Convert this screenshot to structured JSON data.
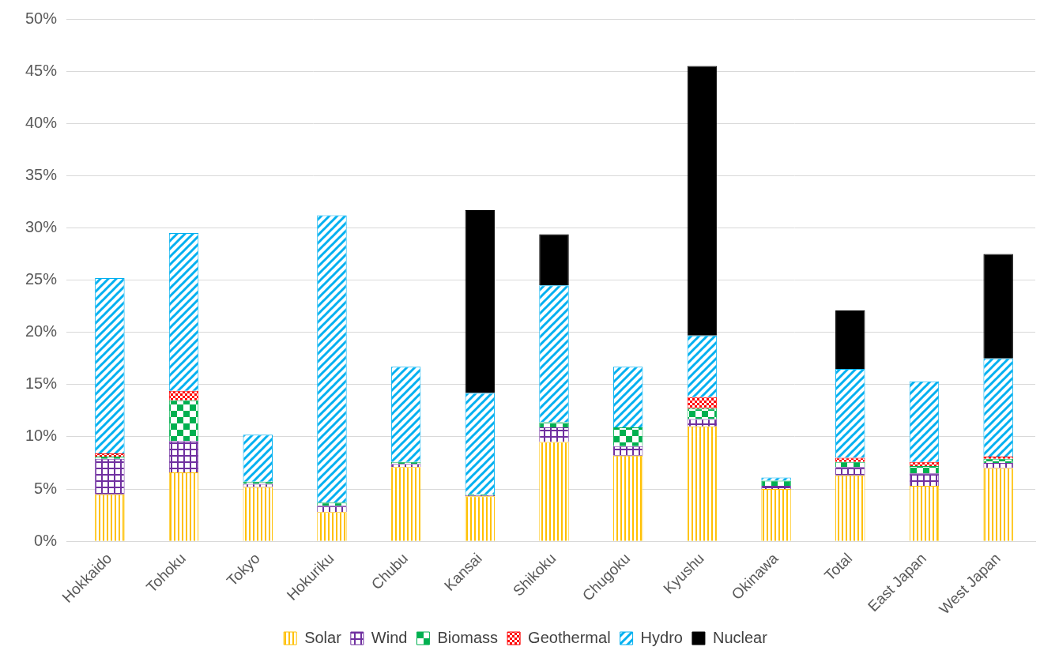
{
  "chart_data": {
    "type": "bar",
    "stacked": true,
    "grid": true,
    "legend": "bottom",
    "categories": [
      "Hokkaido",
      "Tohoku",
      "Tokyo",
      "Hokuriku",
      "Chubu",
      "Kansai",
      "Shikoku",
      "Chugoku",
      "Kyushu",
      "Okinawa",
      "Total",
      "East Japan",
      "West Japan"
    ],
    "series": [
      {
        "name": "Solar",
        "color": "#ffc000",
        "values": [
          4.5,
          6.6,
          5.2,
          2.8,
          7.1,
          4.3,
          9.5,
          8.2,
          11.0,
          5.0,
          6.3,
          5.3,
          7.0
        ]
      },
      {
        "name": "Wind",
        "color": "#7030a0",
        "values": [
          3.4,
          3.0,
          0.3,
          0.6,
          0.3,
          0.1,
          1.4,
          0.9,
          0.7,
          0.3,
          0.8,
          1.2,
          0.5
        ]
      },
      {
        "name": "Biomass",
        "color": "#00b050",
        "values": [
          0.2,
          3.9,
          0.2,
          0.3,
          0.2,
          0.1,
          0.5,
          1.8,
          1.0,
          0.5,
          0.5,
          0.7,
          0.4
        ]
      },
      {
        "name": "Geothermal",
        "color": "#ff0000",
        "values": [
          0.3,
          0.9,
          0.0,
          0.0,
          0.0,
          0.0,
          0.0,
          0.0,
          1.1,
          0.0,
          0.4,
          0.4,
          0.2
        ]
      },
      {
        "name": "Hydro",
        "color": "#00b0f0",
        "values": [
          16.8,
          15.1,
          4.5,
          27.5,
          9.1,
          9.7,
          13.1,
          5.8,
          5.9,
          0.3,
          8.5,
          7.7,
          9.4
        ]
      },
      {
        "name": "Nuclear",
        "color": "#000000",
        "values": [
          0,
          0,
          0,
          0,
          0,
          17.5,
          4.9,
          0,
          25.8,
          0,
          5.6,
          0,
          10.0
        ]
      }
    ],
    "ylim": [
      0,
      50
    ],
    "yticks": [
      {
        "value": 0,
        "label": "0%"
      },
      {
        "value": 5,
        "label": "5%"
      },
      {
        "value": 10,
        "label": "10%"
      },
      {
        "value": 15,
        "label": "15%"
      },
      {
        "value": 20,
        "label": "20%"
      },
      {
        "value": 25,
        "label": "25%"
      },
      {
        "value": 30,
        "label": "30%"
      },
      {
        "value": 35,
        "label": "35%"
      },
      {
        "value": 40,
        "label": "40%"
      },
      {
        "value": 45,
        "label": "45%"
      },
      {
        "value": 50,
        "label": "50%"
      }
    ]
  }
}
